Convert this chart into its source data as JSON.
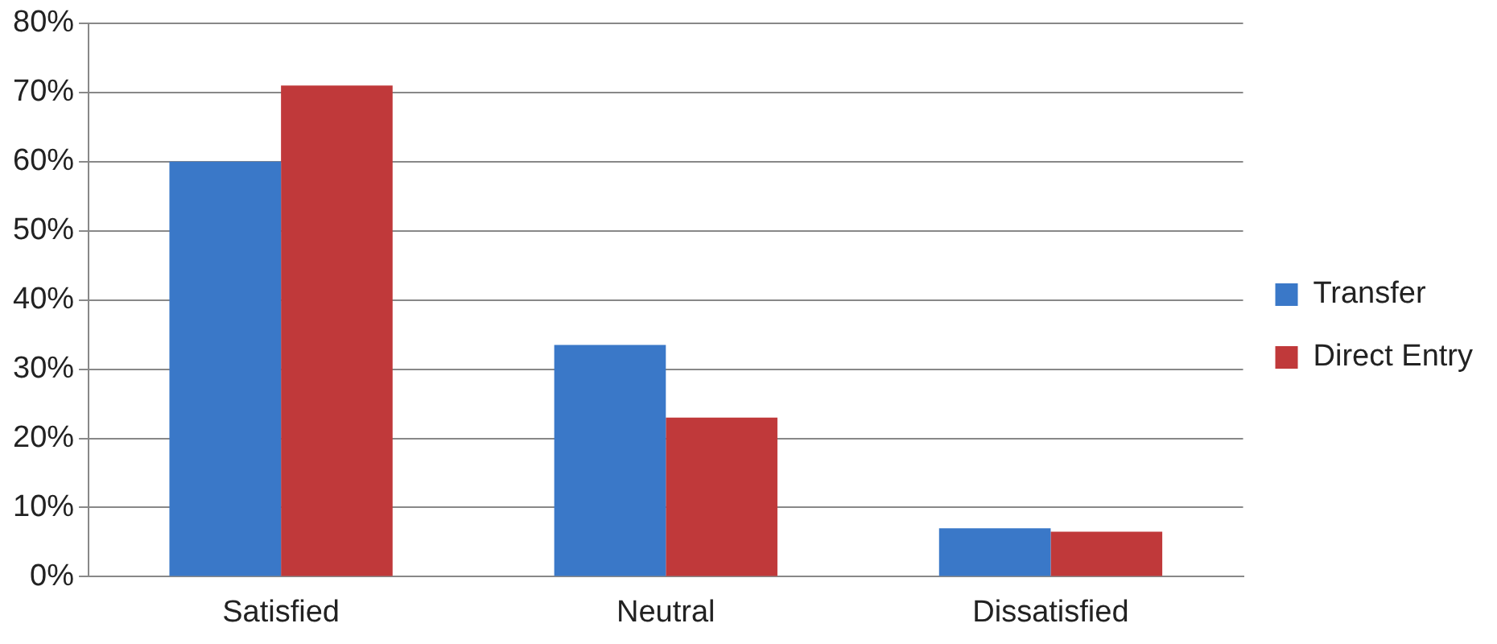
{
  "chart_data": {
    "type": "bar",
    "categories": [
      "Satisfied",
      "Neutral",
      "Dissatisfied"
    ],
    "series": [
      {
        "name": "Transfer",
        "color": "#3a78c8",
        "values": [
          60,
          33.5,
          7
        ]
      },
      {
        "name": "Direct Entry",
        "color": "#c0393a",
        "values": [
          71,
          23,
          6.5
        ]
      }
    ],
    "ylim": [
      0,
      80
    ],
    "yticks": [
      {
        "value": 0,
        "label": "0%"
      },
      {
        "value": 10,
        "label": "10%"
      },
      {
        "value": 20,
        "label": "20%"
      },
      {
        "value": 30,
        "label": "30%"
      },
      {
        "value": 40,
        "label": "40%"
      },
      {
        "value": 50,
        "label": "50%"
      },
      {
        "value": 60,
        "label": "60%"
      },
      {
        "value": 70,
        "label": "70%"
      },
      {
        "value": 80,
        "label": "80%"
      }
    ],
    "grid": "y",
    "legend": "right"
  }
}
